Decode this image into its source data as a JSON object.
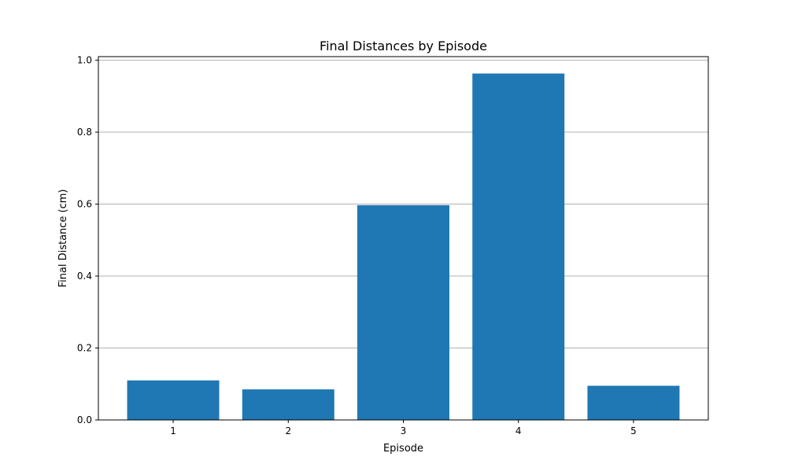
{
  "chart_data": {
    "type": "bar",
    "title": "Final Distances by Episode",
    "xlabel": "Episode",
    "ylabel": "Final Distance (cm)",
    "categories": [
      "1",
      "2",
      "3",
      "4",
      "5"
    ],
    "values": [
      0.11,
      0.085,
      0.597,
      0.963,
      0.095
    ],
    "ylim": [
      0,
      1.01
    ],
    "yticks": [
      0.0,
      0.2,
      0.4,
      0.6,
      0.8,
      1.0
    ],
    "ytick_labels": [
      "0.0",
      "0.2",
      "0.4",
      "0.6",
      "0.8",
      "1.0"
    ],
    "grid": {
      "y": true,
      "x": false
    },
    "bar_color": "#1f77b4",
    "grid_color": "#b0b0b0"
  }
}
